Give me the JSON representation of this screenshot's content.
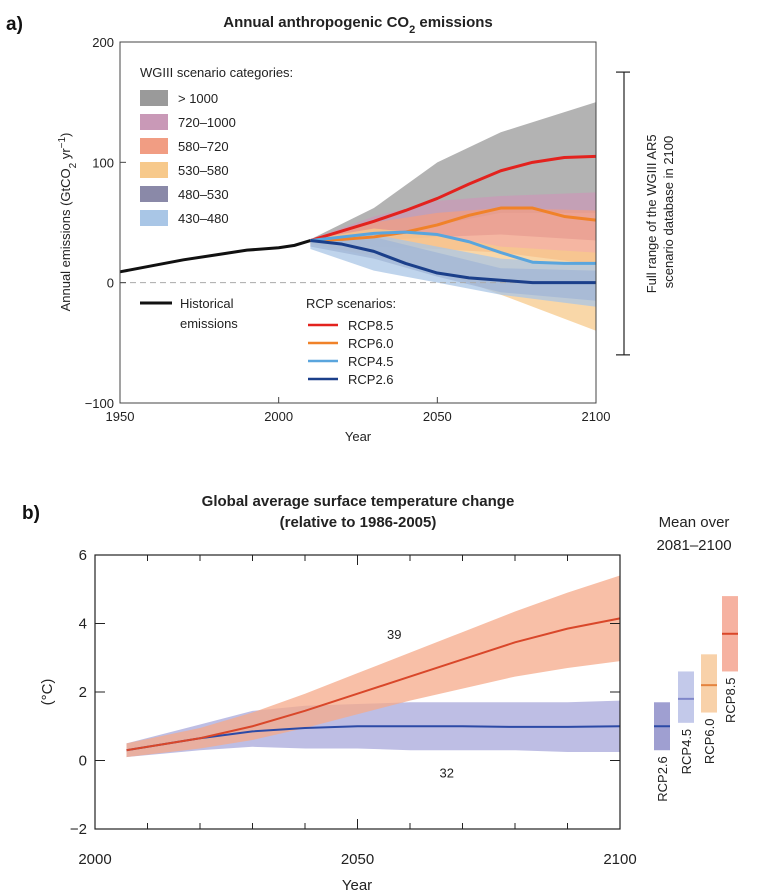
{
  "panel_a_label": "a)",
  "panel_b_label": "b)",
  "chart_data": [
    {
      "type": "line",
      "title": "Annual anthropogenic CO",
      "title_subscript": "2",
      "title_suffix": " emissions",
      "xlabel": "Year",
      "ylabel": "Annual emissions (GtCO",
      "ylabel_subscript": "2",
      "ylabel_suffix": " yr",
      "ylabel_superscript": "−1",
      "ylabel_close": ")",
      "xlim": [
        1950,
        2100
      ],
      "ylim": [
        -100,
        200
      ],
      "xticks": [
        1950,
        2000,
        2050,
        2100
      ],
      "yticks": [
        -100,
        0,
        100,
        200
      ],
      "xtick_labels": [
        "1950",
        "2000",
        "2050",
        "2100"
      ],
      "ytick_labels": [
        "−100",
        "0",
        "100",
        "200"
      ],
      "zero_line": "dashed",
      "legend_categories_title": "WGIII scenario categories:",
      "scenario_categories": [
        {
          "label": "> 1000",
          "color": "#9a9a9a",
          "years": [
            2010,
            2030,
            2050,
            2070,
            2100
          ],
          "upper": [
            36,
            62,
            100,
            125,
            150
          ],
          "lower": [
            34,
            38,
            48,
            58,
            58
          ]
        },
        {
          "label": "720–1000",
          "color": "#c999b7",
          "years": [
            2010,
            2030,
            2050,
            2070,
            2100
          ],
          "upper": [
            36,
            55,
            68,
            72,
            75
          ],
          "lower": [
            34,
            35,
            38,
            40,
            35
          ]
        },
        {
          "label": "580–720",
          "color": "#f19d83",
          "years": [
            2010,
            2030,
            2050,
            2070,
            2100
          ],
          "upper": [
            36,
            50,
            58,
            62,
            60
          ],
          "lower": [
            33,
            30,
            28,
            25,
            15
          ]
        },
        {
          "label": "530–580",
          "color": "#f7c98b",
          "years": [
            2010,
            2030,
            2050,
            2070,
            2100
          ],
          "upper": [
            36,
            45,
            40,
            30,
            25
          ],
          "lower": [
            32,
            22,
            10,
            -10,
            -40
          ]
        },
        {
          "label": "480–530",
          "color": "#8a89a8",
          "years": [
            2010,
            2030,
            2050,
            2070,
            2100
          ],
          "upper": [
            35,
            38,
            25,
            12,
            10
          ],
          "lower": [
            30,
            20,
            5,
            -8,
            -15
          ]
        },
        {
          "label": "430–480",
          "color": "#a9c6e6",
          "years": [
            2010,
            2030,
            2050,
            2070,
            2100
          ],
          "upper": [
            35,
            40,
            30,
            20,
            15
          ],
          "lower": [
            28,
            10,
            0,
            -10,
            -20
          ]
        }
      ],
      "historical": {
        "label_line1": "Historical",
        "label_line2": "emissions",
        "color": "#111111",
        "x": [
          1950,
          1960,
          1970,
          1980,
          1990,
          2000,
          2005,
          2010
        ],
        "y": [
          9,
          14,
          19,
          23,
          27,
          29,
          31,
          35
        ]
      },
      "legend_rcp_title": "RCP scenarios:",
      "series": [
        {
          "name": "RCP8.5",
          "color": "#e3221e",
          "x": [
            2010,
            2020,
            2030,
            2040,
            2050,
            2060,
            2070,
            2080,
            2090,
            2100
          ],
          "y": [
            35,
            43,
            51,
            60,
            70,
            82,
            93,
            100,
            104,
            105
          ]
        },
        {
          "name": "RCP6.0",
          "color": "#f08229",
          "x": [
            2010,
            2020,
            2030,
            2040,
            2050,
            2060,
            2070,
            2080,
            2090,
            2100
          ],
          "y": [
            35,
            36,
            38,
            42,
            48,
            56,
            62,
            62,
            55,
            52
          ]
        },
        {
          "name": "RCP4.5",
          "color": "#5aa5dd",
          "x": [
            2010,
            2020,
            2030,
            2040,
            2050,
            2060,
            2070,
            2080,
            2090,
            2100
          ],
          "y": [
            35,
            38,
            41,
            42,
            40,
            34,
            25,
            17,
            16,
            16
          ]
        },
        {
          "name": "RCP2.6",
          "color": "#1b3f8a",
          "x": [
            2010,
            2020,
            2030,
            2040,
            2050,
            2060,
            2070,
            2080,
            2090,
            2100
          ],
          "y": [
            35,
            32,
            26,
            16,
            8,
            4,
            2,
            0,
            0,
            0
          ]
        }
      ],
      "annotation_line1": "Full range of the WGIII AR5",
      "annotation_line2": "scenario database in 2100",
      "annotation_range": [
        -60,
        175
      ]
    },
    {
      "type": "line",
      "title_line1": "Global average surface temperature change",
      "title_line2": "(relative to 1986-2005)",
      "xlabel": "Year",
      "ylabel": "(°C)",
      "xlim": [
        2000,
        2100
      ],
      "ylim": [
        -2,
        6
      ],
      "xticks": [
        2000,
        2050,
        2100
      ],
      "yticks": [
        -2,
        0,
        2,
        4,
        6
      ],
      "xtick_labels": [
        "2000",
        "2050",
        "2100"
      ],
      "ytick_labels": [
        "−2",
        "0",
        "2",
        "4",
        "6"
      ],
      "series": [
        {
          "name": "RCP8.5",
          "count_label": "39",
          "color": "#d9472a",
          "band_color": "#f5a98a",
          "x": [
            2006,
            2020,
            2030,
            2040,
            2050,
            2060,
            2070,
            2080,
            2090,
            2100
          ],
          "y": [
            0.3,
            0.65,
            1.0,
            1.45,
            1.95,
            2.45,
            2.95,
            3.45,
            3.85,
            4.15
          ],
          "lower": [
            0.1,
            0.35,
            0.6,
            0.95,
            1.35,
            1.75,
            2.1,
            2.45,
            2.7,
            2.9
          ],
          "upper": [
            0.5,
            0.95,
            1.4,
            1.95,
            2.55,
            3.15,
            3.75,
            4.35,
            4.9,
            5.4
          ]
        },
        {
          "name": "RCP2.6",
          "count_label": "32",
          "color": "#2c4aa6",
          "band_color": "#a8a8db",
          "x": [
            2006,
            2020,
            2030,
            2040,
            2050,
            2060,
            2070,
            2080,
            2090,
            2100
          ],
          "y": [
            0.3,
            0.65,
            0.85,
            0.95,
            1.0,
            1.0,
            1.0,
            0.98,
            0.98,
            1.0
          ],
          "lower": [
            0.1,
            0.3,
            0.4,
            0.35,
            0.35,
            0.3,
            0.3,
            0.3,
            0.25,
            0.25
          ],
          "upper": [
            0.5,
            1.05,
            1.45,
            1.6,
            1.65,
            1.7,
            1.7,
            1.7,
            1.7,
            1.75
          ]
        }
      ],
      "mean_title_line1": "Mean over",
      "mean_title_line2": "2081–2100",
      "mean_bars": [
        {
          "name": "RCP2.6",
          "mean": 1.0,
          "low": 0.3,
          "high": 1.7,
          "color": "#8e8ec9",
          "line": "#2c4aa6"
        },
        {
          "name": "RCP4.5",
          "mean": 1.8,
          "low": 1.1,
          "high": 2.6,
          "color": "#b9c0e6",
          "line": "#7f86c9"
        },
        {
          "name": "RCP6.0",
          "mean": 2.2,
          "low": 1.4,
          "high": 3.1,
          "color": "#f7c99a",
          "line": "#e4833e"
        },
        {
          "name": "RCP8.5",
          "mean": 3.7,
          "low": 2.6,
          "high": 4.8,
          "color": "#f5a490",
          "line": "#d9472a"
        }
      ]
    }
  ]
}
